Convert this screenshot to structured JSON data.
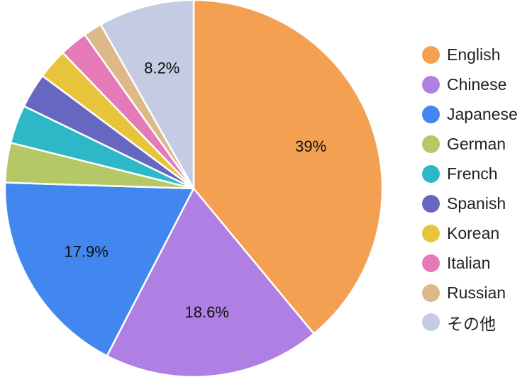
{
  "chart_data": {
    "type": "pie",
    "title": "",
    "categories": [
      "English",
      "Chinese",
      "Japanese",
      "German",
      "French",
      "Spanish",
      "Korean",
      "Italian",
      "Russian",
      "その他"
    ],
    "values": [
      39,
      18.6,
      17.9,
      3.4,
      3.3,
      3.0,
      2.6,
      2.4,
      1.6,
      8.2
    ],
    "data_labels": [
      "39%",
      "18.6%",
      "17.9%",
      "",
      "",
      "",
      "",
      "",
      "",
      "8.2%"
    ],
    "colors": [
      "#F4A053",
      "#B07FE4",
      "#4287F0",
      "#B5C866",
      "#2DB8C8",
      "#6667C0",
      "#E8C43A",
      "#E679B8",
      "#DDB98A",
      "#C4CBE2"
    ],
    "start_angle_deg": 0,
    "direction": "clockwise",
    "legend_position": "right"
  }
}
